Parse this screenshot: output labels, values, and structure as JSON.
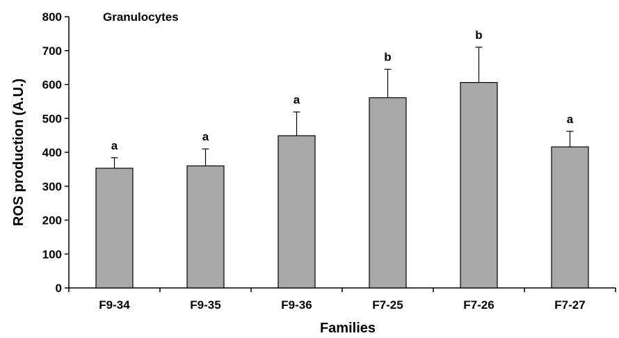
{
  "chart_data": {
    "type": "bar",
    "title": "Granulocytes",
    "xlabel": "Families",
    "ylabel": "ROS production (A.U.)",
    "categories": [
      "F9-34",
      "F9-35",
      "F9-36",
      "F7-25",
      "F7-26",
      "F7-27"
    ],
    "values": [
      353,
      360,
      449,
      561,
      606,
      416
    ],
    "errors": [
      31,
      50,
      70,
      84,
      104,
      46
    ],
    "significance": [
      "a",
      "a",
      "a",
      "b",
      "b",
      "a"
    ],
    "ylim": [
      0,
      800
    ],
    "yticks": [
      0,
      100,
      200,
      300,
      400,
      500,
      600,
      700,
      800
    ],
    "grid": false,
    "colors": {
      "bar_fill": "#a8a8a8",
      "bar_stroke": "#000000",
      "axis": "#000000"
    }
  }
}
